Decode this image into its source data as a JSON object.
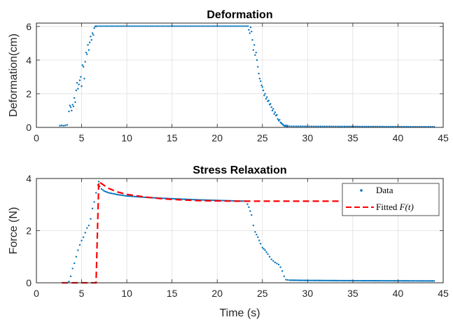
{
  "chart_data": [
    {
      "type": "scatter",
      "title": "Deformation",
      "xlabel": "",
      "ylabel": "Deformation(cm)",
      "xlim": [
        0,
        45
      ],
      "ylim": [
        0,
        6.2
      ],
      "xticks": [
        "0",
        "5",
        "10",
        "15",
        "20",
        "25",
        "30",
        "35",
        "40",
        "45"
      ],
      "yticks": [
        "0",
        "2",
        "4",
        "6"
      ],
      "grid": true,
      "series": [
        {
          "color": "#0072BD",
          "x": [
            2.6,
            2.8,
            3.0,
            3.2,
            3.4,
            3.6,
            3.7,
            3.8,
            3.9,
            4.0,
            4.1,
            4.2,
            4.3,
            4.4,
            4.5,
            4.6,
            4.7,
            4.8,
            4.9,
            5.0,
            5.1,
            5.2,
            5.3,
            5.4,
            5.5,
            5.6,
            5.7,
            5.8,
            5.9,
            6.0,
            6.1,
            6.2,
            6.3,
            6.4,
            6.5,
            6.6,
            23.5,
            23.6,
            23.7,
            23.8,
            23.9,
            24.0,
            24.1,
            24.2,
            24.3,
            24.4,
            24.5,
            24.6,
            24.7,
            24.8,
            24.9,
            25.0,
            25.1,
            25.2,
            25.3,
            25.4,
            25.5,
            25.6,
            25.7,
            25.8,
            25.9,
            26.0,
            26.1,
            26.2,
            26.3,
            26.4,
            26.5,
            26.6,
            26.7,
            26.8,
            26.9,
            27.0,
            27.1,
            27.2,
            27.3,
            27.4,
            27.5,
            27.6,
            27.7,
            27.8
          ],
          "y": [
            0.1,
            0.12,
            0.1,
            0.12,
            0.15,
            0.95,
            1.3,
            1.2,
            1.0,
            1.35,
            1.25,
            1.75,
            1.5,
            2.2,
            2.65,
            2.3,
            2.55,
            2.8,
            3.0,
            2.45,
            3.7,
            3.6,
            2.9,
            3.9,
            4.45,
            4.35,
            4.9,
            4.6,
            5.05,
            5.4,
            5.2,
            5.6,
            5.5,
            5.9,
            6.0,
            6.0,
            5.8,
            5.6,
            5.95,
            5.7,
            5.2,
            4.6,
            4.9,
            4.3,
            4.45,
            4.0,
            3.6,
            3.2,
            2.9,
            2.75,
            2.5,
            2.4,
            2.2,
            1.9,
            2.0,
            1.7,
            1.8,
            1.55,
            1.6,
            1.35,
            1.4,
            1.2,
            1.0,
            1.1,
            0.8,
            0.9,
            0.7,
            0.75,
            0.5,
            0.4,
            0.45,
            0.3,
            0.25,
            0.2,
            0.15,
            0.1,
            0.08,
            0.12,
            0.05,
            0.1
          ]
        },
        {
          "color": "#0072BD",
          "style": "plateau",
          "x": [
            6.6,
            23.4
          ],
          "y": [
            6.02,
            6.02
          ]
        },
        {
          "color": "#0072BD",
          "style": "tail",
          "x": [
            27.8,
            44
          ],
          "y": [
            0.07,
            0.04
          ]
        }
      ]
    },
    {
      "type": "line",
      "title": "Stress Relaxation",
      "xlabel": "Time (s)",
      "ylabel": "Force (N)",
      "xlim": [
        0,
        45
      ],
      "ylim": [
        0,
        4
      ],
      "xticks": [
        "0",
        "5",
        "10",
        "15",
        "20",
        "25",
        "30",
        "35",
        "40",
        "45"
      ],
      "yticks": [
        "0",
        "2",
        "4"
      ],
      "grid": true,
      "legend_position": "top-right",
      "legend": [
        {
          "label": "Data",
          "marker": "dot",
          "color": "#0072BD"
        },
        {
          "label_text": "Fitted ",
          "label_math": "F(t)",
          "marker": "dashed-line",
          "color": "#FF0000"
        }
      ],
      "series": [
        {
          "name": "Data",
          "color": "#0072BD",
          "x": [
            3.6,
            3.8,
            4.0,
            4.2,
            4.4,
            4.6,
            4.8,
            5.0,
            5.2,
            5.4,
            5.6,
            5.8,
            6.0,
            6.2,
            6.4,
            6.6,
            6.8,
            6.9,
            7.0,
            7.2,
            7.5,
            8.0,
            9.0,
            10.0,
            12.0,
            14.0,
            16.0,
            18.0,
            20.0,
            22.0,
            23.2,
            23.5,
            23.8,
            24.0,
            24.2,
            24.5,
            24.8,
            25.0,
            25.3,
            25.6,
            26.0,
            26.4,
            26.8,
            27.0,
            27.2,
            27.4,
            27.6,
            28.0,
            30.0,
            35.0,
            40.0,
            44.0
          ],
          "y": [
            0.05,
            0.25,
            0.55,
            0.75,
            1.0,
            1.25,
            1.45,
            1.62,
            1.75,
            1.92,
            2.1,
            2.2,
            2.45,
            2.85,
            3.1,
            3.45,
            3.75,
            3.88,
            3.7,
            3.6,
            3.52,
            3.45,
            3.38,
            3.33,
            3.28,
            3.24,
            3.21,
            3.18,
            3.16,
            3.14,
            3.13,
            2.9,
            2.6,
            2.2,
            1.95,
            1.75,
            1.5,
            1.35,
            1.25,
            1.1,
            0.9,
            0.78,
            0.7,
            0.6,
            0.45,
            0.25,
            0.12,
            0.1,
            0.09,
            0.08,
            0.075,
            0.07
          ]
        },
        {
          "name": "Fitted F(t)",
          "color": "#FF0000",
          "dashed": true,
          "x": [
            2.8,
            6.6,
            6.9,
            7.0,
            8.0,
            9.0,
            10.0,
            12.0,
            14.0,
            16.0,
            18.0,
            20.0,
            22.0,
            23.5,
            30.0,
            40.0,
            44.0
          ],
          "y": [
            0.0,
            0.0,
            3.88,
            3.85,
            3.62,
            3.48,
            3.39,
            3.29,
            3.22,
            3.18,
            3.15,
            3.14,
            3.13,
            3.13,
            3.13,
            3.13,
            3.13
          ]
        }
      ]
    }
  ]
}
